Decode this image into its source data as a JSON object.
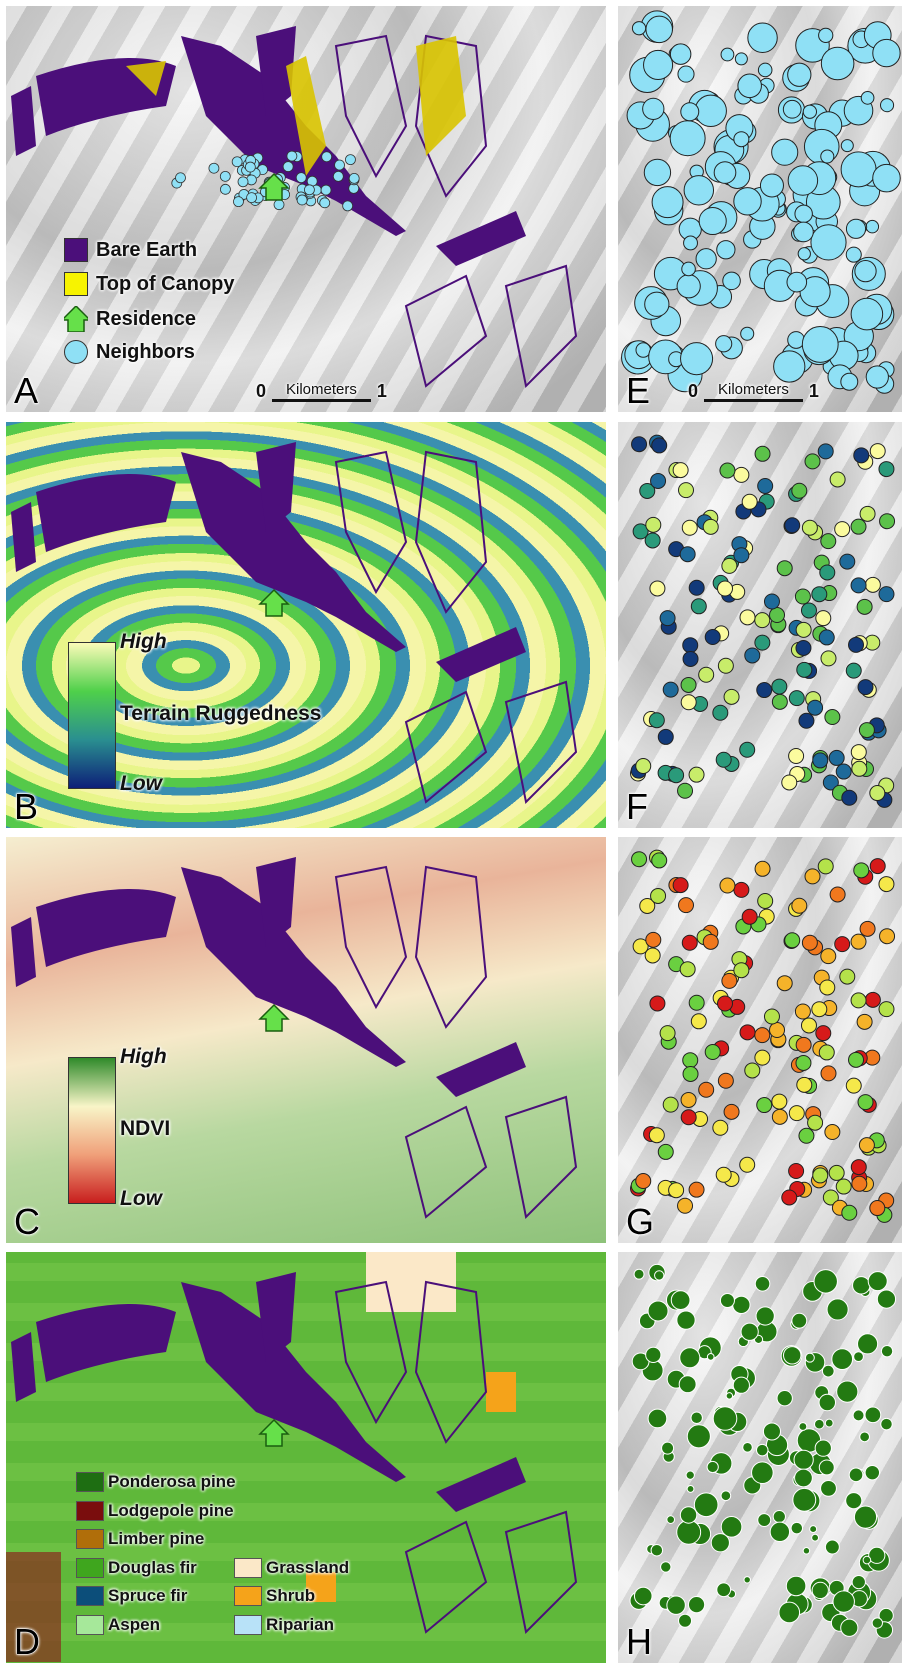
{
  "panels": {
    "a": {
      "label": "A",
      "legend": [
        {
          "label": "Bare Earth",
          "color": "#4b0f7a"
        },
        {
          "label": "Top of Canopy",
          "color": "#f7f300"
        },
        {
          "label": "Residence",
          "color": "#66e04a"
        },
        {
          "label": "Neighbors",
          "color": "#8fe0f5"
        }
      ],
      "scale_bar": {
        "start": 0,
        "unit": "Kilometers",
        "end": 1
      }
    },
    "b": {
      "label": "B",
      "legend_title": "Terrain Ruggedness",
      "high": "High",
      "low": "Low",
      "ramp": [
        "#fbfbb8",
        "#4fd04a",
        "#2a8f90",
        "#0d1f78"
      ]
    },
    "c": {
      "label": "C",
      "legend_title": "NDVI",
      "high": "High",
      "low": "Low",
      "ramp": [
        "#2f8a2a",
        "#f8f5c8",
        "#f0a07a",
        "#c81e1e"
      ]
    },
    "d": {
      "label": "D",
      "legend": [
        {
          "label": "Ponderosa pine",
          "color": "#1e6e12"
        },
        {
          "label": "Lodgepole pine",
          "color": "#7a0d0d"
        },
        {
          "label": "Limber pine",
          "color": "#b06e0a"
        },
        {
          "label": "Douglas fir",
          "color": "#3fa61e"
        },
        {
          "label": "Spruce fir",
          "color": "#0c4e7a"
        },
        {
          "label": "Aspen",
          "color": "#a6e89a"
        },
        {
          "label": "Grassland",
          "color": "#fbe8c8"
        },
        {
          "label": "Shrub",
          "color": "#f5a31a"
        },
        {
          "label": "Riparian",
          "color": "#b8e2f8"
        }
      ]
    },
    "e": {
      "label": "E",
      "scale_bar": {
        "start": 0,
        "unit": "Kilometers",
        "end": 1
      }
    },
    "f": {
      "label": "F"
    },
    "g": {
      "label": "G"
    },
    "h": {
      "label": "H"
    }
  }
}
